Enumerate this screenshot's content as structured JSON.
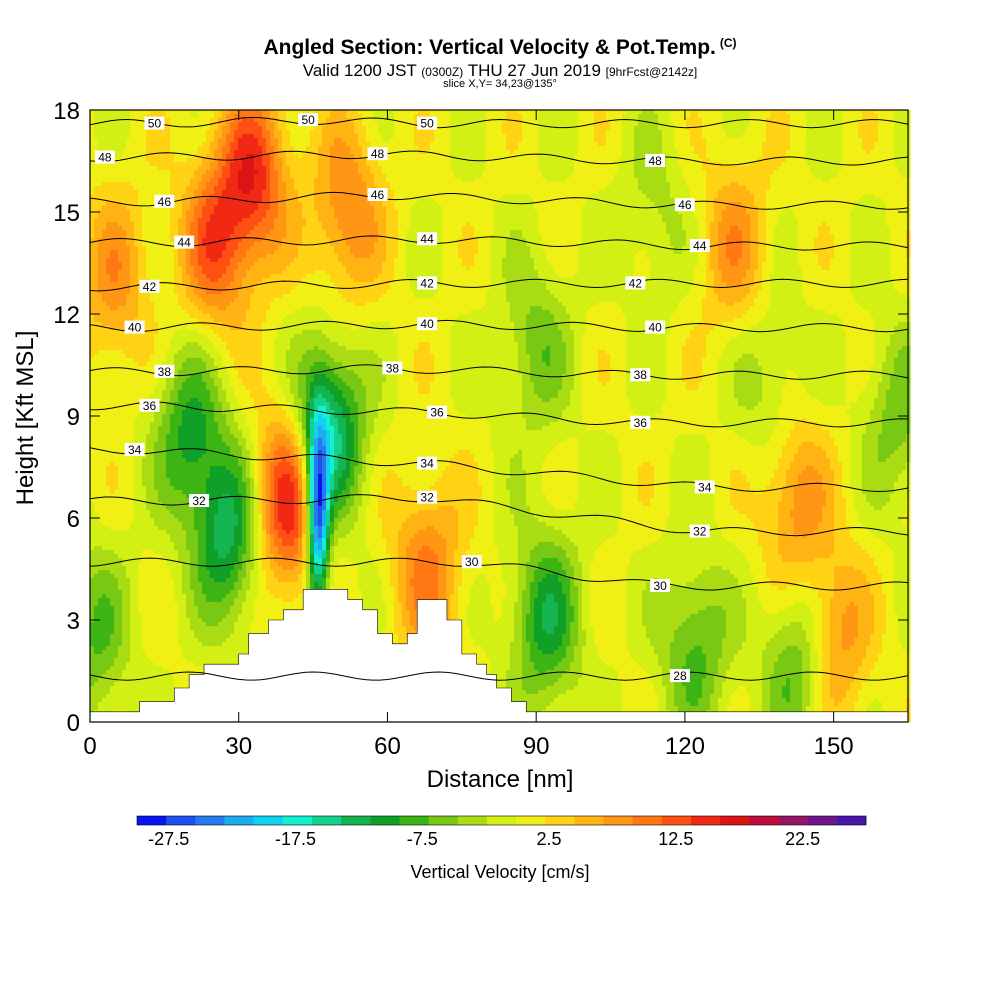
{
  "header": {
    "title": "Angled Section: Vertical Velocity & Pot.Temp.",
    "title_tag": "(C)",
    "valid_prefix": "Valid 1200 JST",
    "valid_zulu": "(0300Z)",
    "valid_date": "THU 27 Jun 2019",
    "valid_fcst": "[9hrFcst@2142z]",
    "slice": "slice X,Y= 34,23@135°"
  },
  "chart_data": {
    "type": "heatmap",
    "xlabel": "Distance [nm]",
    "ylabel": "Height [Kft MSL]",
    "xlim": [
      0,
      165
    ],
    "ylim": [
      0,
      18
    ],
    "x_ticks": [
      0,
      30,
      60,
      90,
      120,
      150
    ],
    "y_ticks": [
      0,
      3,
      6,
      9,
      12,
      15,
      18
    ],
    "colorbar": {
      "label": "Vertical Velocity [cm/s]",
      "tick_labels": [
        "-27.5",
        "-17.5",
        "-7.5",
        "2.5",
        "12.5",
        "22.5"
      ],
      "tick_values": [
        -27.5,
        -17.5,
        -7.5,
        2.5,
        12.5,
        22.5
      ],
      "min": -30,
      "max": 27.5,
      "step": 2.5,
      "colors": [
        "#0a14f0",
        "#1e50f0",
        "#2878f0",
        "#1eaaf0",
        "#10d2f0",
        "#14f0d2",
        "#14d28c",
        "#14b450",
        "#10a028",
        "#3cb414",
        "#78c814",
        "#aadc14",
        "#d2f014",
        "#f0f014",
        "#ffd214",
        "#ffb414",
        "#ff9614",
        "#ff7814",
        "#ff5014",
        "#f02814",
        "#dc1414",
        "#be0f3c",
        "#961464",
        "#6e148c",
        "#4b14aa"
      ]
    },
    "velocity_features": [
      {
        "x": 40,
        "z": 6.5,
        "w": 18
      },
      {
        "x": 33,
        "z": 16,
        "w": 15
      },
      {
        "x": 25,
        "z": 14,
        "w": 12
      },
      {
        "x": 52,
        "z": 15,
        "w": 10
      },
      {
        "x": 68,
        "z": 4.5,
        "w": 10
      },
      {
        "x": 130,
        "z": 14,
        "w": 8
      },
      {
        "x": 150,
        "z": 2.5,
        "w": 10
      },
      {
        "x": 142,
        "z": 6.5,
        "w": 9
      },
      {
        "x": 5,
        "z": 13,
        "w": 8
      },
      {
        "x": 46,
        "z": 6,
        "w": -30
      },
      {
        "x": 48,
        "z": 8.5,
        "w": -18
      },
      {
        "x": 28,
        "z": 5.5,
        "w": -14
      },
      {
        "x": 20,
        "z": 8.5,
        "w": -11
      },
      {
        "x": 92,
        "z": 3,
        "w": -12
      },
      {
        "x": 122,
        "z": 2.2,
        "w": -9
      },
      {
        "x": 143,
        "z": 1.8,
        "w": -10
      },
      {
        "x": 90,
        "z": 11,
        "w": -7
      },
      {
        "x": 163,
        "z": 9,
        "w": -7
      },
      {
        "x": 1,
        "z": 2.5,
        "w": -8
      },
      {
        "x": 137,
        "z": 10,
        "w": -5
      },
      {
        "x": 114,
        "z": 15,
        "w": -4
      }
    ],
    "terrain": [
      [
        0,
        0.3
      ],
      [
        10,
        0.3
      ],
      [
        10,
        0.6
      ],
      [
        17,
        0.6
      ],
      [
        17,
        1.0
      ],
      [
        20,
        1.0
      ],
      [
        20,
        1.4
      ],
      [
        23,
        1.4
      ],
      [
        23,
        1.7
      ],
      [
        30,
        1.7
      ],
      [
        30,
        2.0
      ],
      [
        32,
        2.0
      ],
      [
        32,
        2.6
      ],
      [
        36,
        2.6
      ],
      [
        36,
        3.0
      ],
      [
        39,
        3.0
      ],
      [
        39,
        3.3
      ],
      [
        43,
        3.3
      ],
      [
        43,
        3.9
      ],
      [
        52,
        3.9
      ],
      [
        52,
        3.6
      ],
      [
        55,
        3.6
      ],
      [
        55,
        3.3
      ],
      [
        58,
        3.3
      ],
      [
        58,
        2.6
      ],
      [
        61,
        2.6
      ],
      [
        61,
        2.3
      ],
      [
        64,
        2.3
      ],
      [
        64,
        2.6
      ],
      [
        66,
        2.6
      ],
      [
        66,
        3.6
      ],
      [
        72,
        3.6
      ],
      [
        72,
        3.0
      ],
      [
        75,
        3.0
      ],
      [
        75,
        2.0
      ],
      [
        78,
        2.0
      ],
      [
        78,
        1.7
      ],
      [
        80,
        1.7
      ],
      [
        80,
        1.4
      ],
      [
        82,
        1.4
      ],
      [
        82,
        1.0
      ],
      [
        85,
        1.0
      ],
      [
        85,
        0.6
      ],
      [
        88,
        0.6
      ],
      [
        88,
        0.3
      ],
      [
        165,
        0.3
      ]
    ],
    "isentropes": [
      {
        "theta": 28,
        "label_at": [
          119,
          1.35
        ]
      },
      {
        "theta": 30,
        "label_at": [
          115,
          4.0
        ]
      },
      {
        "theta": 30,
        "label_at": [
          77,
          4.7
        ]
      },
      {
        "theta": 32,
        "label_at": [
          22,
          6.5
        ]
      },
      {
        "theta": 32,
        "label_at": [
          68,
          6.6
        ]
      },
      {
        "theta": 32,
        "label_at": [
          123,
          5.6
        ]
      },
      {
        "theta": 34,
        "label_at": [
          9,
          8.0
        ]
      },
      {
        "theta": 34,
        "label_at": [
          68,
          7.6
        ]
      },
      {
        "theta": 34,
        "label_at": [
          124,
          6.9
        ]
      },
      {
        "theta": 36,
        "label_at": [
          12,
          9.3
        ]
      },
      {
        "theta": 36,
        "label_at": [
          70,
          9.1
        ]
      },
      {
        "theta": 36,
        "label_at": [
          111,
          8.8
        ]
      },
      {
        "theta": 38,
        "label_at": [
          15,
          10.3
        ]
      },
      {
        "theta": 38,
        "label_at": [
          61,
          10.4
        ]
      },
      {
        "theta": 38,
        "label_at": [
          111,
          10.2
        ]
      },
      {
        "theta": 40,
        "label_at": [
          9,
          11.6
        ]
      },
      {
        "theta": 40,
        "label_at": [
          68,
          11.7
        ]
      },
      {
        "theta": 40,
        "label_at": [
          114,
          11.6
        ]
      },
      {
        "theta": 42,
        "label_at": [
          12,
          12.8
        ]
      },
      {
        "theta": 42,
        "label_at": [
          68,
          12.9
        ]
      },
      {
        "theta": 42,
        "label_at": [
          110,
          12.9
        ]
      },
      {
        "theta": 44,
        "label_at": [
          19,
          14.1
        ]
      },
      {
        "theta": 44,
        "label_at": [
          68,
          14.2
        ]
      },
      {
        "theta": 44,
        "label_at": [
          123,
          14.0
        ]
      },
      {
        "theta": 46,
        "label_at": [
          15,
          15.3
        ]
      },
      {
        "theta": 46,
        "label_at": [
          58,
          15.5
        ]
      },
      {
        "theta": 46,
        "label_at": [
          120,
          15.2
        ]
      },
      {
        "theta": 48,
        "label_at": [
          3,
          16.6
        ]
      },
      {
        "theta": 48,
        "label_at": [
          58,
          16.7
        ]
      },
      {
        "theta": 48,
        "label_at": [
          114,
          16.5
        ]
      },
      {
        "theta": 50,
        "label_at": [
          13,
          17.6
        ]
      },
      {
        "theta": 50,
        "label_at": [
          44,
          17.7
        ]
      },
      {
        "theta": 50,
        "label_at": [
          68,
          17.6
        ]
      }
    ]
  }
}
